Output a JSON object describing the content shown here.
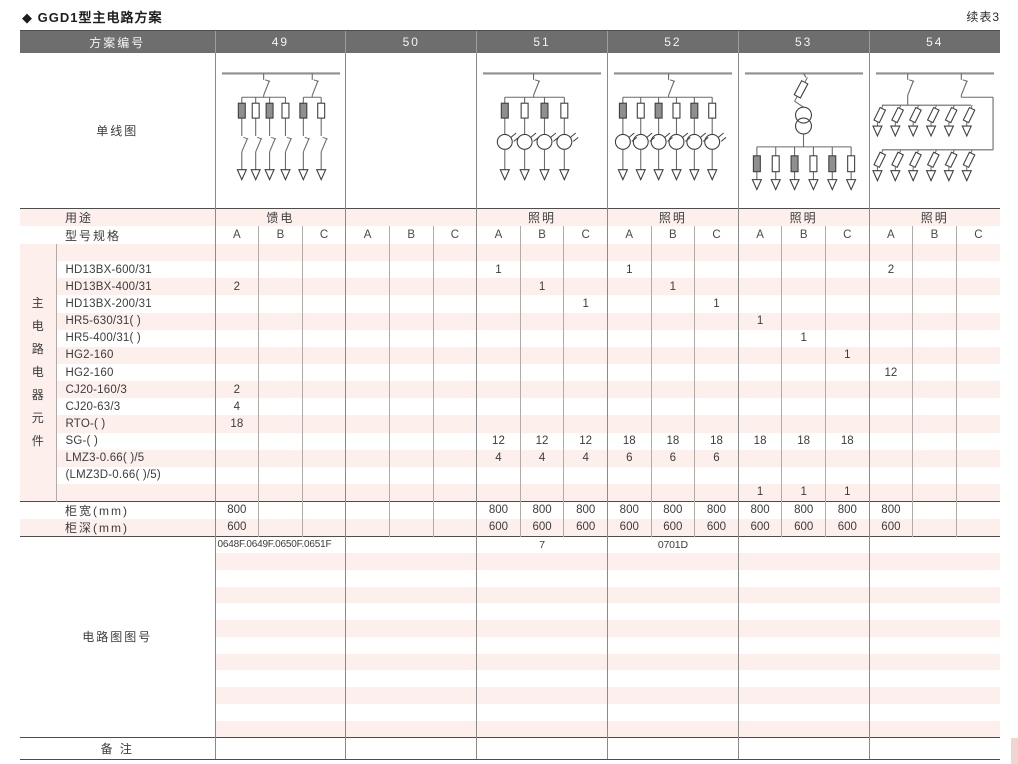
{
  "title": "◆ GGD1型主电路方案",
  "continuation": "续表3",
  "colors": {
    "header_bg": "#6e6e6e",
    "stripe_pink": "#fcefec",
    "rule_dark": "#4d4d4d",
    "main_grid": "#8a8a8a",
    "sub_grid": "#b3aaa7",
    "corner_mark": "#f0d5d1"
  },
  "table": {
    "scheme_label": "方案编号",
    "schemes": [
      "49",
      "50",
      "51",
      "52",
      "53",
      "54"
    ],
    "diagram_label": "单线图",
    "usage_label": "用途",
    "usage": [
      "馈电",
      "",
      "照明",
      "照明",
      "照明",
      "照明"
    ],
    "model_label": "型号规格",
    "subcols": [
      "A",
      "B",
      "C"
    ],
    "group_label_chars": [
      "主",
      "电",
      "路",
      "电",
      "器",
      "元",
      "件"
    ],
    "component_rows": [
      {
        "model": "",
        "values": [
          "",
          "",
          "",
          "",
          "",
          "",
          "",
          "",
          "",
          "",
          "",
          "",
          "",
          "",
          "",
          "",
          "",
          ""
        ]
      },
      {
        "model": "HD13BX-600/31",
        "values": [
          "",
          "",
          "",
          "",
          "",
          "",
          "1",
          "",
          "",
          "1",
          "",
          "",
          "",
          "",
          "",
          "2",
          "",
          ""
        ]
      },
      {
        "model": "HD13BX-400/31",
        "values": [
          "2",
          "",
          "",
          "",
          "",
          "",
          "",
          "1",
          "",
          "",
          "1",
          "",
          "",
          "",
          "",
          "",
          "",
          ""
        ]
      },
      {
        "model": "HD13BX-200/31",
        "values": [
          "",
          "",
          "",
          "",
          "",
          "",
          "",
          "",
          "1",
          "",
          "",
          "1",
          "",
          "",
          "",
          "",
          "",
          ""
        ]
      },
      {
        "model": "HR5-630/31(  )",
        "values": [
          "",
          "",
          "",
          "",
          "",
          "",
          "",
          "",
          "",
          "",
          "",
          "",
          "1",
          "",
          "",
          "",
          "",
          ""
        ]
      },
      {
        "model": "HR5-400/31(  )",
        "values": [
          "",
          "",
          "",
          "",
          "",
          "",
          "",
          "",
          "",
          "",
          "",
          "",
          "",
          "1",
          "",
          "",
          "",
          ""
        ]
      },
      {
        "model": "HG2-160",
        "values": [
          "",
          "",
          "",
          "",
          "",
          "",
          "",
          "",
          "",
          "",
          "",
          "",
          "",
          "",
          "1",
          "",
          "",
          ""
        ]
      },
      {
        "model": "HG2-160",
        "values": [
          "",
          "",
          "",
          "",
          "",
          "",
          "",
          "",
          "",
          "",
          "",
          "",
          "",
          "",
          "",
          "12",
          "",
          ""
        ]
      },
      {
        "model": "CJ20-160/3",
        "values": [
          "2",
          "",
          "",
          "",
          "",
          "",
          "",
          "",
          "",
          "",
          "",
          "",
          "",
          "",
          "",
          "",
          "",
          ""
        ]
      },
      {
        "model": "CJ20-63/3",
        "values": [
          "4",
          "",
          "",
          "",
          "",
          "",
          "",
          "",
          "",
          "",
          "",
          "",
          "",
          "",
          "",
          "",
          "",
          ""
        ]
      },
      {
        "model": "RTO-(  )",
        "values": [
          "18",
          "",
          "",
          "",
          "",
          "",
          "",
          "",
          "",
          "",
          "",
          "",
          "",
          "",
          "",
          "",
          "",
          ""
        ]
      },
      {
        "model": "SG-(  )",
        "values": [
          "",
          "",
          "",
          "",
          "",
          "",
          "12",
          "12",
          "12",
          "18",
          "18",
          "18",
          "18",
          "18",
          "18",
          "",
          "",
          ""
        ]
      },
      {
        "model": "LMZ3-0.66(  )/5",
        "values": [
          "",
          "",
          "",
          "",
          "",
          "",
          "4",
          "4",
          "4",
          "6",
          "6",
          "6",
          "",
          "",
          "",
          "",
          "",
          ""
        ]
      },
      {
        "model": "(LMZ3D-0.66(  )/5)",
        "values": [
          "",
          "",
          "",
          "",
          "",
          "",
          "",
          "",
          "",
          "",
          "",
          "",
          "",
          "",
          "",
          "",
          "",
          ""
        ]
      },
      {
        "model": "",
        "values": [
          "",
          "",
          "",
          "",
          "",
          "",
          "",
          "",
          "",
          "",
          "",
          "",
          "1",
          "1",
          "1",
          "",
          "",
          ""
        ]
      }
    ],
    "width_label": "柜宽(mm)",
    "width_values": [
      "800",
      "",
      "",
      "",
      "",
      "",
      "800",
      "800",
      "800",
      "800",
      "800",
      "800",
      "800",
      "800",
      "800",
      "800",
      "",
      ""
    ],
    "depth_label": "柜深(mm)",
    "depth_values": [
      "600",
      "",
      "",
      "",
      "",
      "",
      "600",
      "600",
      "600",
      "600",
      "600",
      "600",
      "600",
      "600",
      "600",
      "600",
      "",
      ""
    ],
    "drawing_label": "电路图图号",
    "drawing_values": [
      "0648F.0649F.0650F.0651F",
      "",
      "7",
      "0701D",
      "",
      ""
    ],
    "drawing_filler_rows": 11,
    "remark_label": "备 注"
  },
  "diagrams": {
    "49": {
      "type": "groups",
      "branch": "fuse_switch",
      "groups": [
        4,
        2
      ]
    },
    "50": null,
    "51": {
      "type": "groups_ct",
      "branch": "fuse_ct",
      "branches": 4
    },
    "52": {
      "type": "groups_ct",
      "branch": "fuse_ct",
      "branches": 6
    },
    "53": {
      "type": "transformer",
      "branch": "fuse_only",
      "branches": 6
    },
    "54": {
      "type": "two_tier",
      "branch": "diag_fuse",
      "branches_per_tier": 6
    }
  }
}
